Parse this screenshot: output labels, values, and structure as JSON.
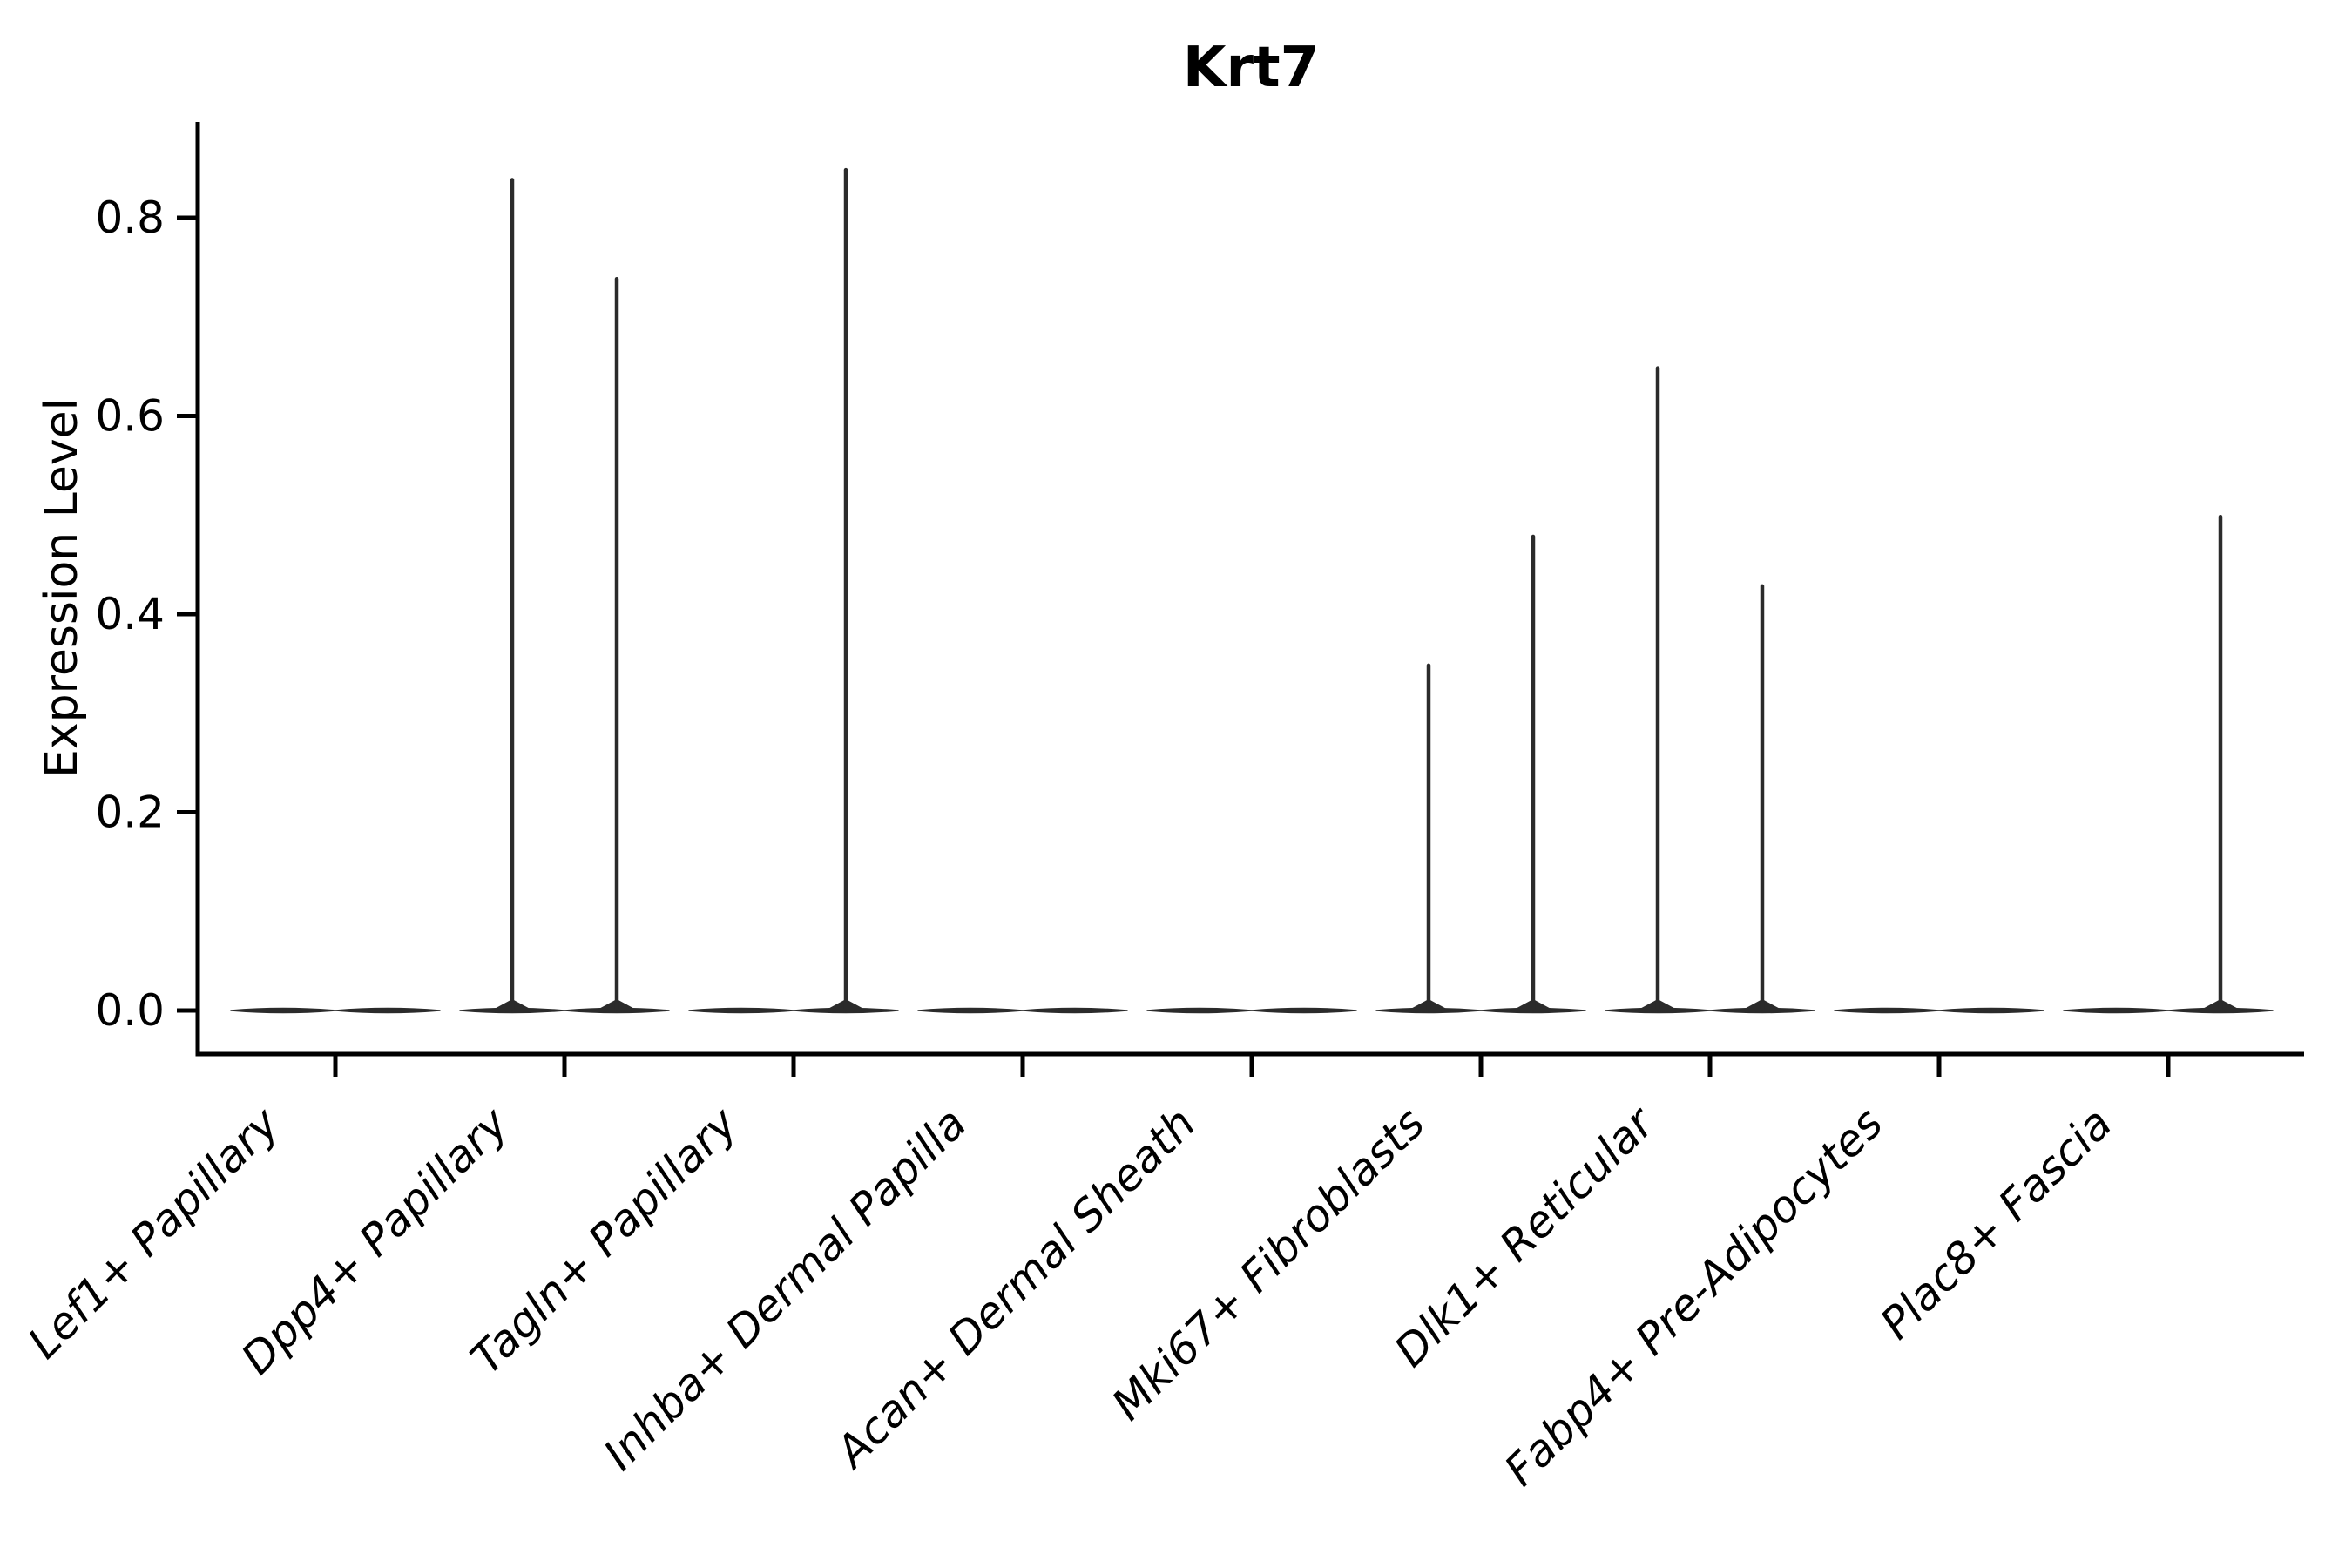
{
  "figure": {
    "title": "Krt7",
    "y_axis_label": "Expression Level",
    "background_color": "#ffffff",
    "axis_color": "#000000",
    "violin_color": "#2b2b2b"
  },
  "axes": {
    "y_tick_labels": [
      "0.0",
      "0.2",
      "0.4",
      "0.6",
      "0.8"
    ],
    "x_tick_labels": [
      "Lef1+ Papillary",
      "Dpp4+ Papillary",
      "Tagln+ Papillary",
      "Inhba+ Dermal Papilla",
      "Acan+ Dermal Sheath",
      "Mki67+ Fibroblasts",
      "Dlk1+ Reticular",
      "Fabp4+ Pre-Adipocytes",
      "Plac8+ Fascia"
    ]
  },
  "chart_data": {
    "type": "violin",
    "title": "Krt7",
    "xlabel": "",
    "ylabel": "Expression Level",
    "categories": [
      "Lef1+ Papillary",
      "Dpp4+ Papillary",
      "Tagln+ Papillary",
      "Inhba+ Dermal Papilla",
      "Acan+ Dermal Sheath",
      "Mki67+ Fibroblasts",
      "Dlk1+ Reticular",
      "Fabp4+ Pre-Adipocytes",
      "Plac8+ Fascia"
    ],
    "yticks": [
      0.0,
      0.2,
      0.4,
      0.6,
      0.8
    ],
    "ylim": [
      -0.04,
      0.9
    ],
    "grid": false,
    "legend": "none",
    "violins_per_category": 2,
    "violin_offset_fraction": 0.225,
    "violin_halfwidth_fraction": 0.225,
    "density_note": "Nearly all density lies at expression 0 (flat dark bar); thin spikes rise to the per-violin maximum expression.",
    "series": [
      {
        "name": "violin-left",
        "max_expression": [
          0,
          0.84,
          0,
          0,
          0,
          0.35,
          0.65,
          0,
          0
        ]
      },
      {
        "name": "violin-right",
        "max_expression": [
          0,
          0.74,
          0.85,
          0,
          0,
          0.48,
          0.43,
          0,
          0.5
        ]
      }
    ]
  }
}
